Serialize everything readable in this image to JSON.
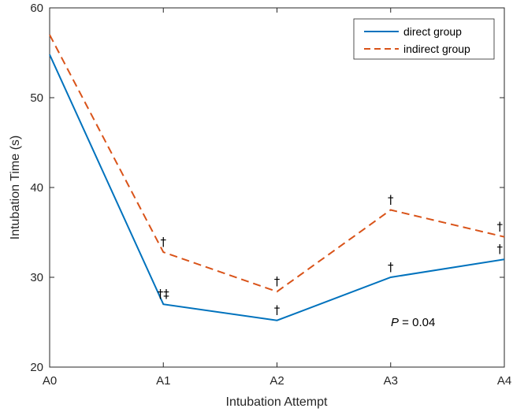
{
  "chart_data": {
    "type": "line",
    "categories": [
      "A0",
      "A1",
      "A2",
      "A3",
      "A4"
    ],
    "series": [
      {
        "name": "direct group",
        "values": [
          54.8,
          27.0,
          25.2,
          30.0,
          32.0
        ],
        "color": "#0072BD",
        "style": "solid"
      },
      {
        "name": "indirect group",
        "values": [
          57.0,
          32.8,
          28.4,
          37.5,
          34.5
        ],
        "color": "#D95319",
        "style": "dashed"
      }
    ],
    "xlabel": "Intubation Attempt",
    "ylabel": "Intubation Time (s)",
    "ylim": [
      20,
      60
    ],
    "yticks": [
      20,
      30,
      40,
      50,
      60
    ],
    "grid": false,
    "legend_placement": "top-right",
    "annotations": [
      {
        "series": "indirect group",
        "category": "A1",
        "text": "†"
      },
      {
        "series": "direct group",
        "category": "A1",
        "text": "†‡"
      },
      {
        "series": "indirect group",
        "category": "A2",
        "text": "†"
      },
      {
        "series": "direct group",
        "category": "A2",
        "text": "†"
      },
      {
        "series": "indirect group",
        "category": "A3",
        "text": "†"
      },
      {
        "series": "direct group",
        "category": "A3",
        "text": "†"
      },
      {
        "series": "indirect group",
        "category": "A4",
        "text": "†"
      },
      {
        "series": "direct group",
        "category": "A4",
        "text": "†"
      }
    ],
    "pvalue": {
      "label": "P",
      "eq": " = ",
      "value": "0.04"
    }
  }
}
